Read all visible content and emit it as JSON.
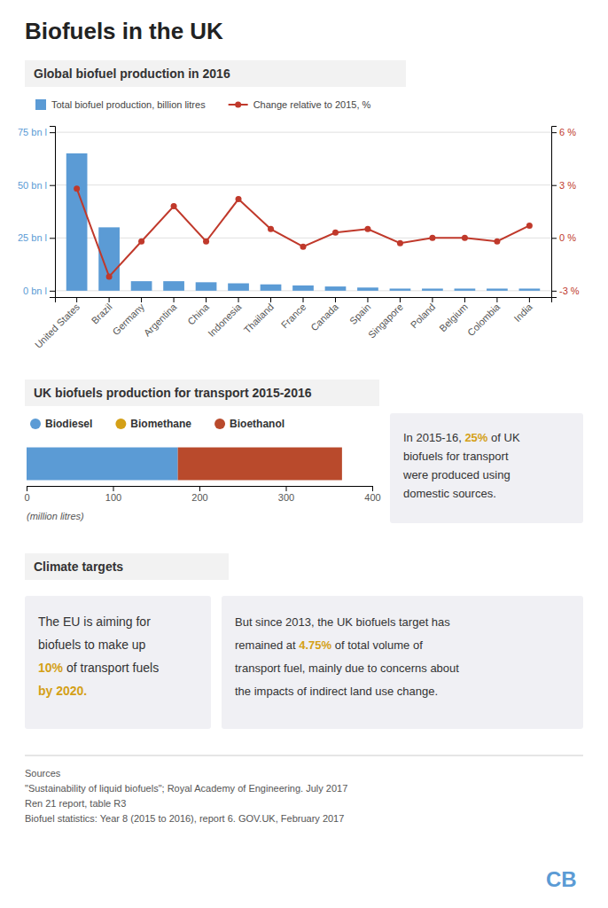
{
  "title": "Biofuels in the UK",
  "chart_data": [
    {
      "type": "bar",
      "title": "Global biofuel production in 2016",
      "categories": [
        "United States",
        "Brazil",
        "Germany",
        "Argentina",
        "China",
        "Indonesia",
        "Thailand",
        "France",
        "Canada",
        "Spain",
        "Singapore",
        "Poland",
        "Belgium",
        "Colombia",
        "India"
      ],
      "series": [
        {
          "name": "Total biofuel production, billion litres",
          "type": "bar",
          "color": "#5B9BD5",
          "values": [
            65,
            30,
            4.5,
            4.5,
            4.0,
            3.5,
            3.0,
            2.5,
            2.0,
            1.5,
            1.0,
            1.0,
            1.0,
            1.0,
            1.0
          ]
        },
        {
          "name": "Change relative to 2015, %",
          "type": "line",
          "color": "#C0392B",
          "marker": "circle",
          "axis": "y2",
          "values": [
            2.8,
            -2.2,
            -0.2,
            1.8,
            -0.2,
            2.2,
            0.5,
            -0.5,
            0.3,
            0.5,
            -0.3,
            0.0,
            0.0,
            -0.2,
            0.7
          ]
        }
      ],
      "ylim": [
        -3,
        78
      ],
      "yticks": [
        {
          "value": 0,
          "label": "0 bn l"
        },
        {
          "value": 25,
          "label": "25 bn l"
        },
        {
          "value": 50,
          "label": "50 bn l"
        },
        {
          "value": 75,
          "label": "75 bn l"
        }
      ],
      "y2lim": [
        -3.36,
        6.36
      ],
      "y2ticks": [
        {
          "value": -3,
          "label": "-3 %"
        },
        {
          "value": 0,
          "label": "0 %"
        },
        {
          "value": 3,
          "label": "3 %"
        },
        {
          "value": 6,
          "label": "6 %"
        }
      ],
      "grid": true,
      "legend": "top"
    },
    {
      "type": "bar",
      "title": "UK biofuels production for transport 2015-2016",
      "orientation": "horizontal",
      "stacked": true,
      "categories": [
        null
      ],
      "series": [
        {
          "name": "Biodiesel",
          "color": "#5B9BD5",
          "values": [
            175
          ]
        },
        {
          "name": "Biomethane",
          "color": "#D4A017",
          "values": [
            null
          ]
        },
        {
          "name": "Bioethanol",
          "color": "#B94A2C",
          "values": [
            190
          ]
        }
      ],
      "xlim": [
        0,
        400
      ],
      "xticks": [
        0,
        100,
        200,
        300,
        400
      ],
      "xlabel": "(million litres)",
      "legend": "top",
      "annotations": [
        {
          "lines": [
            [
              {
                "text": "In 2015-16, "
              },
              {
                "text": "25%",
                "color": "#D4A017"
              },
              {
                "text": " of UK"
              }
            ],
            [
              {
                "text": "biofuels for transport"
              }
            ],
            [
              {
                "text": "were produced using"
              }
            ],
            [
              {
                "text": "domestic sources."
              }
            ]
          ]
        }
      ]
    }
  ],
  "sections": [
    {
      "title": "Climate targets",
      "annotations": [
        {
          "lines": [
            [
              {
                "text": "The EU is aiming for"
              }
            ],
            [
              {
                "text": "biofuels to make up"
              }
            ],
            [
              {
                "text": "10%",
                "color": "#D4A017"
              },
              {
                "text": " of transport fuels"
              }
            ],
            [
              {
                "text": "by 2020.",
                "color": "#D4A017"
              }
            ]
          ]
        },
        {
          "lines": [
            [
              {
                "text": "But since 2013, the UK biofuels target has"
              }
            ],
            [
              {
                "text": "remained at "
              },
              {
                "text": "4.75%",
                "color": "#D4A017"
              },
              {
                "text": " of total volume of"
              }
            ],
            [
              {
                "text": "transport fuel, mainly due to concerns about"
              }
            ],
            [
              {
                "text": "the impacts of indirect land use change."
              }
            ]
          ]
        }
      ]
    }
  ],
  "sources": [
    "Sources",
    "\"Sustainability of liquid biofuels\"; Royal Academy of Engineering. July 2017",
    "Ren 21 report, table R3",
    "Biofuel statistics: Year 8 (2015 to 2016), report 6. GOV.UK, February 2017"
  ],
  "logo": {
    "text": "CB",
    "color": "#5B9BD5"
  }
}
